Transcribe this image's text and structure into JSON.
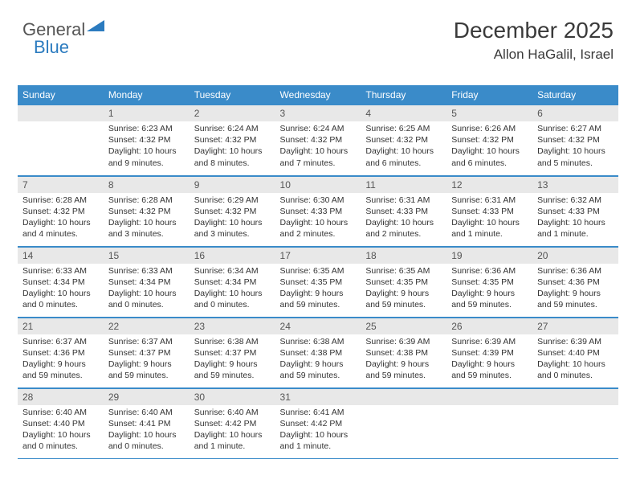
{
  "logo": {
    "part1": "General",
    "part2": "Blue"
  },
  "header": {
    "title": "December 2025",
    "location": "Allon HaGalil, Israel"
  },
  "colors": {
    "header_bg": "#3a8bc9",
    "header_text": "#ffffff",
    "daynum_bg": "#e8e8e8",
    "border": "#3a8bc9",
    "body_text": "#333333",
    "logo_gray": "#555555",
    "logo_blue": "#2b7bbf"
  },
  "weekdays": [
    "Sunday",
    "Monday",
    "Tuesday",
    "Wednesday",
    "Thursday",
    "Friday",
    "Saturday"
  ],
  "weeks": [
    [
      null,
      {
        "n": "1",
        "sr": "Sunrise: 6:23 AM",
        "ss": "Sunset: 4:32 PM",
        "d1": "Daylight: 10 hours",
        "d2": "and 9 minutes."
      },
      {
        "n": "2",
        "sr": "Sunrise: 6:24 AM",
        "ss": "Sunset: 4:32 PM",
        "d1": "Daylight: 10 hours",
        "d2": "and 8 minutes."
      },
      {
        "n": "3",
        "sr": "Sunrise: 6:24 AM",
        "ss": "Sunset: 4:32 PM",
        "d1": "Daylight: 10 hours",
        "d2": "and 7 minutes."
      },
      {
        "n": "4",
        "sr": "Sunrise: 6:25 AM",
        "ss": "Sunset: 4:32 PM",
        "d1": "Daylight: 10 hours",
        "d2": "and 6 minutes."
      },
      {
        "n": "5",
        "sr": "Sunrise: 6:26 AM",
        "ss": "Sunset: 4:32 PM",
        "d1": "Daylight: 10 hours",
        "d2": "and 6 minutes."
      },
      {
        "n": "6",
        "sr": "Sunrise: 6:27 AM",
        "ss": "Sunset: 4:32 PM",
        "d1": "Daylight: 10 hours",
        "d2": "and 5 minutes."
      }
    ],
    [
      {
        "n": "7",
        "sr": "Sunrise: 6:28 AM",
        "ss": "Sunset: 4:32 PM",
        "d1": "Daylight: 10 hours",
        "d2": "and 4 minutes."
      },
      {
        "n": "8",
        "sr": "Sunrise: 6:28 AM",
        "ss": "Sunset: 4:32 PM",
        "d1": "Daylight: 10 hours",
        "d2": "and 3 minutes."
      },
      {
        "n": "9",
        "sr": "Sunrise: 6:29 AM",
        "ss": "Sunset: 4:32 PM",
        "d1": "Daylight: 10 hours",
        "d2": "and 3 minutes."
      },
      {
        "n": "10",
        "sr": "Sunrise: 6:30 AM",
        "ss": "Sunset: 4:33 PM",
        "d1": "Daylight: 10 hours",
        "d2": "and 2 minutes."
      },
      {
        "n": "11",
        "sr": "Sunrise: 6:31 AM",
        "ss": "Sunset: 4:33 PM",
        "d1": "Daylight: 10 hours",
        "d2": "and 2 minutes."
      },
      {
        "n": "12",
        "sr": "Sunrise: 6:31 AM",
        "ss": "Sunset: 4:33 PM",
        "d1": "Daylight: 10 hours",
        "d2": "and 1 minute."
      },
      {
        "n": "13",
        "sr": "Sunrise: 6:32 AM",
        "ss": "Sunset: 4:33 PM",
        "d1": "Daylight: 10 hours",
        "d2": "and 1 minute."
      }
    ],
    [
      {
        "n": "14",
        "sr": "Sunrise: 6:33 AM",
        "ss": "Sunset: 4:34 PM",
        "d1": "Daylight: 10 hours",
        "d2": "and 0 minutes."
      },
      {
        "n": "15",
        "sr": "Sunrise: 6:33 AM",
        "ss": "Sunset: 4:34 PM",
        "d1": "Daylight: 10 hours",
        "d2": "and 0 minutes."
      },
      {
        "n": "16",
        "sr": "Sunrise: 6:34 AM",
        "ss": "Sunset: 4:34 PM",
        "d1": "Daylight: 10 hours",
        "d2": "and 0 minutes."
      },
      {
        "n": "17",
        "sr": "Sunrise: 6:35 AM",
        "ss": "Sunset: 4:35 PM",
        "d1": "Daylight: 9 hours",
        "d2": "and 59 minutes."
      },
      {
        "n": "18",
        "sr": "Sunrise: 6:35 AM",
        "ss": "Sunset: 4:35 PM",
        "d1": "Daylight: 9 hours",
        "d2": "and 59 minutes."
      },
      {
        "n": "19",
        "sr": "Sunrise: 6:36 AM",
        "ss": "Sunset: 4:35 PM",
        "d1": "Daylight: 9 hours",
        "d2": "and 59 minutes."
      },
      {
        "n": "20",
        "sr": "Sunrise: 6:36 AM",
        "ss": "Sunset: 4:36 PM",
        "d1": "Daylight: 9 hours",
        "d2": "and 59 minutes."
      }
    ],
    [
      {
        "n": "21",
        "sr": "Sunrise: 6:37 AM",
        "ss": "Sunset: 4:36 PM",
        "d1": "Daylight: 9 hours",
        "d2": "and 59 minutes."
      },
      {
        "n": "22",
        "sr": "Sunrise: 6:37 AM",
        "ss": "Sunset: 4:37 PM",
        "d1": "Daylight: 9 hours",
        "d2": "and 59 minutes."
      },
      {
        "n": "23",
        "sr": "Sunrise: 6:38 AM",
        "ss": "Sunset: 4:37 PM",
        "d1": "Daylight: 9 hours",
        "d2": "and 59 minutes."
      },
      {
        "n": "24",
        "sr": "Sunrise: 6:38 AM",
        "ss": "Sunset: 4:38 PM",
        "d1": "Daylight: 9 hours",
        "d2": "and 59 minutes."
      },
      {
        "n": "25",
        "sr": "Sunrise: 6:39 AM",
        "ss": "Sunset: 4:38 PM",
        "d1": "Daylight: 9 hours",
        "d2": "and 59 minutes."
      },
      {
        "n": "26",
        "sr": "Sunrise: 6:39 AM",
        "ss": "Sunset: 4:39 PM",
        "d1": "Daylight: 9 hours",
        "d2": "and 59 minutes."
      },
      {
        "n": "27",
        "sr": "Sunrise: 6:39 AM",
        "ss": "Sunset: 4:40 PM",
        "d1": "Daylight: 10 hours",
        "d2": "and 0 minutes."
      }
    ],
    [
      {
        "n": "28",
        "sr": "Sunrise: 6:40 AM",
        "ss": "Sunset: 4:40 PM",
        "d1": "Daylight: 10 hours",
        "d2": "and 0 minutes."
      },
      {
        "n": "29",
        "sr": "Sunrise: 6:40 AM",
        "ss": "Sunset: 4:41 PM",
        "d1": "Daylight: 10 hours",
        "d2": "and 0 minutes."
      },
      {
        "n": "30",
        "sr": "Sunrise: 6:40 AM",
        "ss": "Sunset: 4:42 PM",
        "d1": "Daylight: 10 hours",
        "d2": "and 1 minute."
      },
      {
        "n": "31",
        "sr": "Sunrise: 6:41 AM",
        "ss": "Sunset: 4:42 PM",
        "d1": "Daylight: 10 hours",
        "d2": "and 1 minute."
      },
      null,
      null,
      null
    ]
  ]
}
